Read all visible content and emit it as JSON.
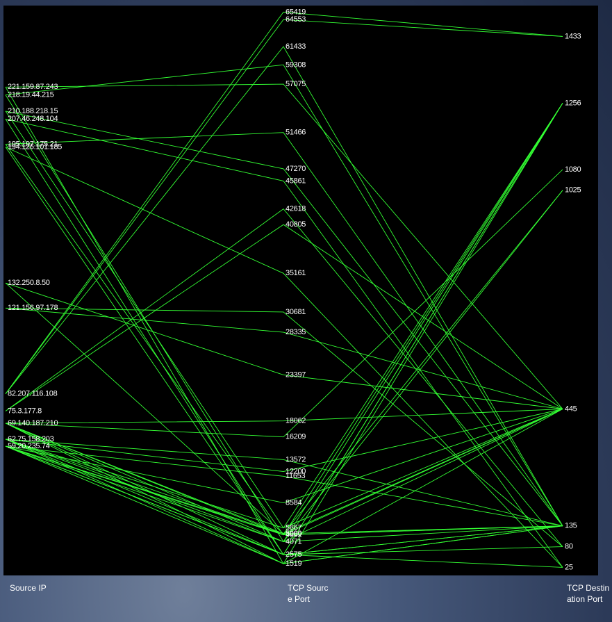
{
  "chart_data": {
    "type": "parallel",
    "color": "#33ff33",
    "axes": [
      {
        "name": "Source IP",
        "scale": "ip",
        "ylim": [
          0,
          256
        ],
        "ticks": [
          "221.159.87.243",
          "218.19.44.215",
          "210.188.218.15",
          "207.46.248.104",
          "195.197.175.21",
          "194.126.101.185",
          "132.250.8.50",
          "121.156.97.178",
          "82.207.116.108",
          "75.3.177.8",
          "69.140.187.210",
          "62.75.158.203",
          "59.20.235.74"
        ]
      },
      {
        "name": "TCP Source Port",
        "scale": "linear",
        "ylim": [
          0,
          65535
        ],
        "ticks": [
          65419,
          64553,
          61433,
          59308,
          57075,
          51466,
          47270,
          45861,
          42618,
          40805,
          35161,
          30681,
          28335,
          23397,
          18062,
          16209,
          13572,
          12200,
          11653,
          8584,
          5667,
          5000,
          4862,
          4071,
          2575,
          1519
        ]
      },
      {
        "name": "TCP Destination Port",
        "scale": "linear",
        "ylim": [
          0,
          1500
        ],
        "ticks": [
          1433,
          1256,
          1080,
          1025,
          445,
          135,
          80,
          25
        ]
      }
    ],
    "records": [
      [
        "221.159.87.243",
        57075,
        445
      ],
      [
        "218.19.44.215",
        59308,
        135
      ],
      [
        "210.188.218.15",
        47270,
        135
      ],
      [
        "207.46.248.104",
        45861,
        25
      ],
      [
        "195.197.175.21",
        4862,
        1256
      ],
      [
        "194.126.101.185",
        2575,
        1256
      ],
      [
        "132.250.8.50",
        5000,
        1025
      ],
      [
        "121.156.97.178",
        28335,
        445
      ],
      [
        "82.207.116.108",
        64553,
        1433
      ],
      [
        "82.207.116.108",
        61433,
        135
      ],
      [
        "75.3.177.8",
        42618,
        80
      ],
      [
        "75.3.177.8",
        40805,
        445
      ],
      [
        "69.140.187.210",
        18062,
        445
      ],
      [
        "69.140.187.210",
        16209,
        1080
      ],
      [
        "62.75.158.203",
        13572,
        135
      ],
      [
        "62.75.158.203",
        12200,
        445
      ],
      [
        "59.20.235.74",
        11653,
        135
      ],
      [
        "59.20.235.74",
        8584,
        445
      ],
      [
        "221.159.87.243",
        1519,
        445
      ],
      [
        "218.19.44.215",
        4071,
        1256
      ],
      [
        "207.46.248.104",
        2575,
        135
      ],
      [
        "210.188.218.15",
        5667,
        1256
      ],
      [
        "195.197.175.21",
        51466,
        135
      ],
      [
        "194.126.101.185",
        35161,
        25
      ],
      [
        "121.156.97.178",
        30681,
        80
      ],
      [
        "132.250.8.50",
        23397,
        445
      ],
      [
        "82.207.116.108",
        65419,
        1433
      ],
      [
        "59.20.235.74",
        1519,
        135
      ],
      [
        "59.20.235.74",
        2575,
        135
      ],
      [
        "59.20.235.74",
        4071,
        445
      ],
      [
        "62.75.158.203",
        4862,
        135
      ],
      [
        "62.75.158.203",
        2575,
        1256
      ],
      [
        "69.140.187.210",
        1519,
        1256
      ],
      [
        "69.140.187.210",
        4071,
        1025
      ],
      [
        "59.20.235.74",
        5000,
        135
      ],
      [
        "62.75.158.203",
        1519,
        135
      ],
      [
        "69.140.187.210",
        2575,
        80
      ],
      [
        "59.20.235.74",
        4862,
        445
      ],
      [
        "62.75.158.203",
        4071,
        135
      ],
      [
        "69.140.187.210",
        5000,
        445
      ],
      [
        "59.20.235.74",
        2575,
        25
      ],
      [
        "62.75.158.203",
        5667,
        445
      ],
      [
        "69.140.187.210",
        4862,
        135
      ]
    ]
  }
}
